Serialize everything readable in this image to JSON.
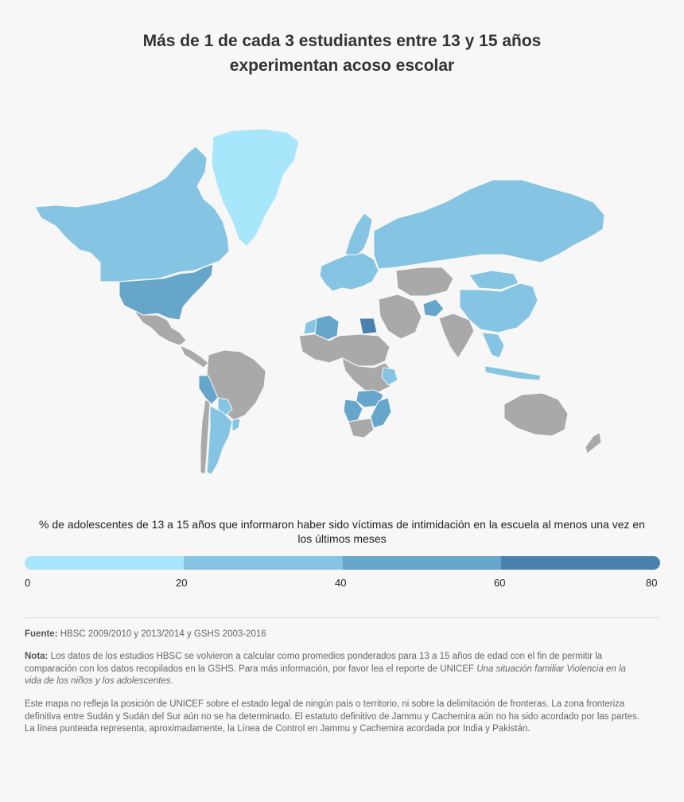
{
  "title": {
    "line1": "Más de 1 de cada 3 estudiantes entre 13 y 15 años",
    "line2": "experimentan acoso escolar"
  },
  "colors": {
    "background": "#f7f7f7",
    "no_data": "#a9a9a9",
    "scale": [
      "#a7e6fb",
      "#85c4e3",
      "#66a6cb",
      "#4a82ae"
    ]
  },
  "legend": {
    "title": "% de adolescentes de 13 a 15 años que informaron haber sido víctimas de intimidación en la escuela al menos una vez en los últimos meses",
    "ticks": [
      "0",
      "20",
      "40",
      "60",
      "80"
    ]
  },
  "regions": [
    {
      "name": "Groenlandia",
      "bin": 0
    },
    {
      "name": "Canadá",
      "bin": 1
    },
    {
      "name": "Estados Unidos",
      "bin": 1
    },
    {
      "name": "México",
      "bin": null
    },
    {
      "name": "Centroamérica",
      "bin": null
    },
    {
      "name": "Brasil",
      "bin": null
    },
    {
      "name": "Perú",
      "bin": 2
    },
    {
      "name": "Bolivia",
      "bin": 1
    },
    {
      "name": "Argentina",
      "bin": 1
    },
    {
      "name": "Chile",
      "bin": null
    },
    {
      "name": "Uruguay",
      "bin": 1
    },
    {
      "name": "Europa occidental",
      "bin": 1
    },
    {
      "name": "Escandinavia",
      "bin": 1
    },
    {
      "name": "Rusia",
      "bin": 1
    },
    {
      "name": "Argelia",
      "bin": 2
    },
    {
      "name": "Egipto",
      "bin": 3
    },
    {
      "name": "Marruecos",
      "bin": 1
    },
    {
      "name": "África occidental",
      "bin": null
    },
    {
      "name": "África central",
      "bin": null
    },
    {
      "name": "Zambia",
      "bin": 2
    },
    {
      "name": "Namibia",
      "bin": 2
    },
    {
      "name": "Mozambique",
      "bin": 2
    },
    {
      "name": "Kenia",
      "bin": 1
    },
    {
      "name": "Península arábiga",
      "bin": null
    },
    {
      "name": "Asia central",
      "bin": null
    },
    {
      "name": "Afganistán",
      "bin": 2
    },
    {
      "name": "India",
      "bin": null
    },
    {
      "name": "China",
      "bin": 1
    },
    {
      "name": "Mongolia",
      "bin": 1
    },
    {
      "name": "Sudeste asiático",
      "bin": 1
    },
    {
      "name": "Indonesia",
      "bin": 1
    },
    {
      "name": "Australia",
      "bin": null
    },
    {
      "name": "Nueva Zelanda",
      "bin": null
    }
  ],
  "footer": {
    "source_label": "Fuente:",
    "source_text": "HBSC 2009/2010 y 2013/2014 y GSHS 2003-2016",
    "note_label": "Nota:",
    "note_text": "Los datos de los estudios HBSC se volvieron a calcular como promedios ponderados para 13 a 15 años de edad con el fin de permitir la comparación con los datos recopilados en la GSHS. Para más información, por favor lea el reporte de UNICEF",
    "note_title": "Una situación familiar Violencia en la vida de los niños y los adolescentes",
    "note_end": ".",
    "disclaimer": "Este mapa no refleja la posición de UNICEF sobre el estado legal de ningún país o territorio, ni sobre la delimitación de fronteras. La zona fronteriza definitiva entre Sudán y Sudán del Sur aún no se ha determinado. El estatuto definitivo de Jammu y Cachemira aún no ha sido acordado por las partes. La línea punteada representa, aproximadamente, la Línea de Control en Jammu y Cachemira acordada por India y Pakistán."
  }
}
